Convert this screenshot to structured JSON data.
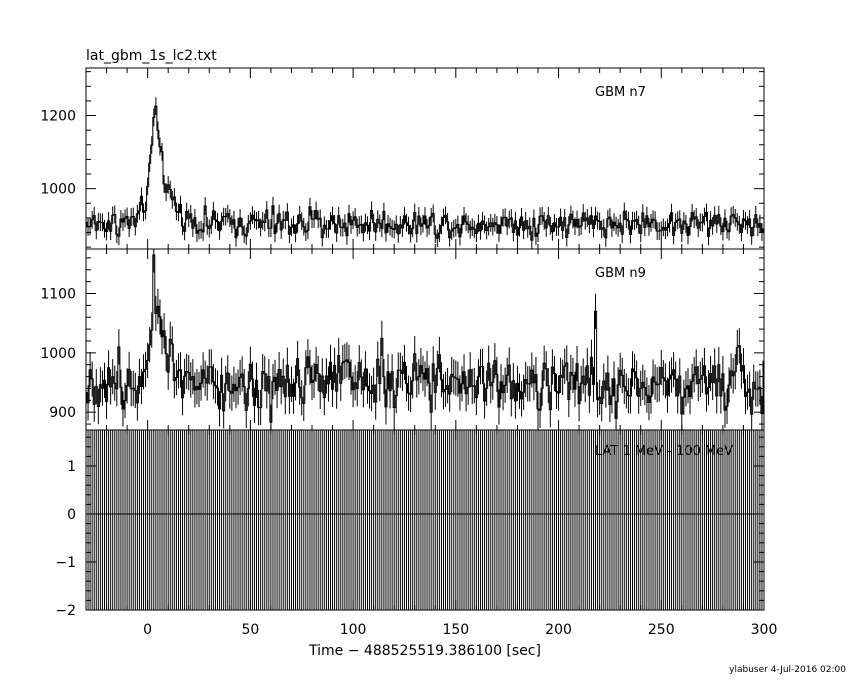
{
  "chart_data": {
    "type": "line",
    "title": "lat_gbm_1s_lc2.txt",
    "xlabel": "Time − 488525519.386100 [sec]",
    "xlim": [
      -30,
      300
    ],
    "x_ticks": [
      0,
      50,
      100,
      150,
      200,
      250,
      300
    ],
    "footer": "ylabuser  4-Jul-2016 02:00",
    "panels": [
      {
        "name": "GBM n7",
        "ylim": [
          835,
          1330
        ],
        "y_ticks": [
          1000,
          1200
        ],
        "baseline": 905,
        "noise": 27,
        "peak_time": 3.5,
        "peak_value": 1320,
        "rise": 2.5,
        "decay": 5.0,
        "spikes": []
      },
      {
        "name": "GBM n9",
        "ylim": [
          870,
          1175
        ],
        "y_ticks": [
          900,
          1000,
          1100
        ],
        "baseline": 950,
        "noise": 33,
        "peak_time": 3.0,
        "peak_value": 1165,
        "rise": 2.5,
        "decay": 6.0,
        "spikes": [
          [
            218,
            1070
          ]
        ]
      },
      {
        "name": "LAT 1 MeV - 100 MeV",
        "ylim": [
          -2,
          1.75
        ],
        "y_ticks": [
          -2,
          -1,
          0,
          1
        ],
        "bars": true
      }
    ]
  }
}
